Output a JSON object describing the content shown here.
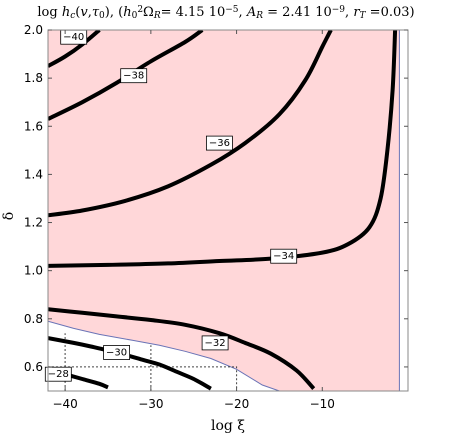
{
  "chart_data": {
    "type": "contour",
    "title_parts": [
      {
        "t": "log "
      },
      {
        "t": "h",
        "it": true
      },
      {
        "t": "c",
        "sub": true,
        "it": true
      },
      {
        "t": "("
      },
      {
        "t": "v",
        "it": true
      },
      {
        "t": ","
      },
      {
        "t": "τ",
        "it": true
      },
      {
        "t": "0",
        "sub": true
      },
      {
        "t": "), ("
      },
      {
        "t": "h",
        "it": true
      },
      {
        "t": "0",
        "sub": true
      },
      {
        "t": "2",
        "sup": true
      },
      {
        "t": "Ω"
      },
      {
        "t": "R",
        "sub": true,
        "it": true
      },
      {
        "t": "= 4.15 10"
      },
      {
        "t": "−5",
        "sup": true
      },
      {
        "t": ",  "
      },
      {
        "t": "A",
        "it": true
      },
      {
        "t": "R",
        "sub": true,
        "it": true
      },
      {
        "t": " = 2.41 10"
      },
      {
        "t": "−9",
        "sup": true
      },
      {
        "t": ", "
      },
      {
        "t": "r",
        "it": true
      },
      {
        "t": "T",
        "sub": true,
        "it": true
      },
      {
        "t": " =0.03)"
      }
    ],
    "xlabel": "log ξ",
    "ylabel": "δ",
    "xlim": [
      -42,
      0
    ],
    "ylim": [
      0.5,
      2.0
    ],
    "xticks": [
      -40,
      -30,
      -20,
      -10
    ],
    "xtick_labels": [
      "−40",
      "−30",
      "−20",
      "−10"
    ],
    "yticks": [
      0.6,
      0.8,
      1.0,
      1.2,
      1.4,
      1.6,
      1.8,
      2.0
    ],
    "ytick_labels": [
      "0.6",
      "0.8",
      "1.0",
      "1.2",
      "1.4",
      "1.6",
      "1.8",
      "2.0"
    ],
    "region_color": "#FFD7D9",
    "region_edge_color": "#6A73B6",
    "contour_color": "#000000",
    "region_boundary": [
      [
        -42,
        2.0
      ],
      [
        -1,
        2.0
      ],
      [
        -1,
        0.5
      ],
      [
        -15,
        0.5
      ],
      [
        -17,
        0.525
      ],
      [
        -20,
        0.59
      ],
      [
        -23,
        0.635
      ],
      [
        -26,
        0.665
      ],
      [
        -29,
        0.69
      ],
      [
        -32,
        0.71
      ],
      [
        -36,
        0.735
      ],
      [
        -39,
        0.76
      ],
      [
        -42,
        0.79
      ]
    ],
    "guides": [
      {
        "points": [
          [
            -42,
            0.6
          ],
          [
            -20,
            0.6
          ],
          [
            -20,
            0.5
          ]
        ]
      },
      {
        "points": [
          [
            -40,
            0.5
          ],
          [
            -40,
            0.74
          ]
        ]
      },
      {
        "points": [
          [
            -30,
            0.5
          ],
          [
            -30,
            0.69
          ]
        ]
      }
    ],
    "contours": [
      {
        "level": "−40",
        "points": [
          [
            -42,
            1.85
          ],
          [
            -40,
            1.89
          ],
          [
            -38,
            1.94
          ],
          [
            -36,
            2.0
          ]
        ],
        "label_at": [
          -39.0,
          1.97
        ]
      },
      {
        "level": "−38",
        "points": [
          [
            -42,
            1.63
          ],
          [
            -38,
            1.7
          ],
          [
            -34,
            1.78
          ],
          [
            -30,
            1.87
          ],
          [
            -26,
            1.95
          ],
          [
            -24,
            2.0
          ]
        ],
        "label_at": [
          -32.0,
          1.81
        ]
      },
      {
        "level": "−36",
        "points": [
          [
            -42,
            1.23
          ],
          [
            -38,
            1.25
          ],
          [
            -33,
            1.29
          ],
          [
            -28,
            1.35
          ],
          [
            -23,
            1.44
          ],
          [
            -19,
            1.53
          ],
          [
            -15,
            1.65
          ],
          [
            -12,
            1.79
          ],
          [
            -10,
            1.93
          ],
          [
            -9,
            2.0
          ]
        ],
        "label_at": [
          -22.0,
          1.53
        ]
      },
      {
        "level": "−34",
        "points": [
          [
            -42,
            1.02
          ],
          [
            -35,
            1.024
          ],
          [
            -28,
            1.03
          ],
          [
            -22,
            1.04
          ],
          [
            -16,
            1.05
          ],
          [
            -10,
            1.075
          ],
          [
            -7,
            1.11
          ],
          [
            -4.5,
            1.18
          ],
          [
            -3.2,
            1.3
          ],
          [
            -2.4,
            1.5
          ],
          [
            -1.8,
            1.75
          ],
          [
            -1.5,
            2.0
          ]
        ],
        "label_at": [
          -14.5,
          1.06
        ]
      },
      {
        "level": "−32",
        "points": [
          [
            -42,
            0.84
          ],
          [
            -38,
            0.825
          ],
          [
            -34,
            0.81
          ],
          [
            -30,
            0.795
          ],
          [
            -26,
            0.775
          ],
          [
            -22,
            0.74
          ],
          [
            -19,
            0.7
          ],
          [
            -16,
            0.655
          ],
          [
            -13,
            0.585
          ],
          [
            -11,
            0.51
          ]
        ],
        "label_at": [
          -22.5,
          0.7
        ]
      },
      {
        "level": "−30",
        "points": [
          [
            -42,
            0.72
          ],
          [
            -39,
            0.7
          ],
          [
            -37,
            0.685
          ],
          [
            -34,
            0.66
          ],
          [
            -31,
            0.63
          ],
          [
            -29,
            0.61
          ],
          [
            -27,
            0.58
          ],
          [
            -25,
            0.55
          ],
          [
            -23,
            0.51
          ]
        ],
        "label_at": [
          -34.0,
          0.66
        ]
      },
      {
        "level": "−28",
        "points": [
          [
            -42,
            0.59
          ],
          [
            -40,
            0.57
          ],
          [
            -38,
            0.55
          ],
          [
            -36,
            0.53
          ],
          [
            -35,
            0.515
          ]
        ],
        "label_at": [
          -40.8,
          0.57
        ]
      }
    ]
  }
}
